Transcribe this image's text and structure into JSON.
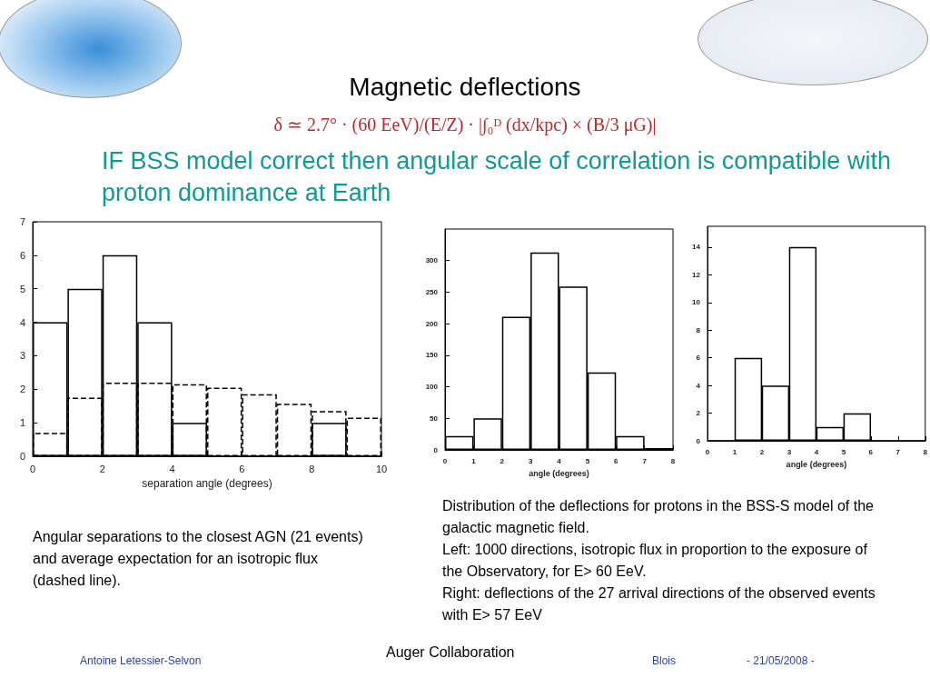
{
  "chart_data": [
    {
      "type": "histogram",
      "xlabel": "separation angle (degrees)",
      "bins": [
        0,
        1,
        2,
        3,
        4,
        5,
        6,
        7,
        8,
        9,
        10
      ],
      "series": [
        {
          "color": "#000000",
          "values": [
            4,
            5,
            6,
            4,
            1,
            0,
            0,
            0,
            1,
            0
          ]
        },
        {
          "color": "#000000",
          "line_style": "dashed",
          "values": [
            0.7,
            1.75,
            2.2,
            2.2,
            2.15,
            2.05,
            1.85,
            1.57,
            1.35,
            1.15
          ]
        }
      ],
      "xlim": [
        0,
        10
      ],
      "xticks": [
        0,
        2,
        4,
        6,
        8,
        10
      ],
      "ylim": [
        0,
        7
      ],
      "yticks": [
        0,
        1,
        2,
        3,
        4,
        5,
        6,
        7
      ],
      "annotations": [
        "Magnetic deflections",
        "δ ≃ 2.7° · (60 EeV)/(E/Z) · |∫₀ᴰ (dx/kpc) × (B/3 μG)|",
        "IF BSS model  correct then angular scale of correlation is compatible with proton dominance at Earth",
        "Angular separations to the closest AGN (21 events) and average expectation for an isotropic flux (dashed line).",
        "Antoine Letessier-Selvon",
        "Auger Collaboration",
        "Blois",
        "- 21/05/2008 -"
      ]
    },
    {
      "type": "histogram",
      "xlabel": "angle (degrees)",
      "bins": [
        0,
        1,
        2,
        3,
        4,
        5,
        6,
        7,
        8
      ],
      "values": [
        22,
        50,
        211,
        313,
        259,
        123,
        22,
        3
      ],
      "color": "#000000",
      "xlim": [
        0,
        8
      ],
      "xticks": [
        0,
        1,
        2,
        3,
        4,
        5,
        6,
        7,
        8
      ],
      "ylim": [
        0,
        350
      ],
      "yticks": [
        0,
        50,
        100,
        150,
        200,
        250,
        300
      ],
      "annotations": [
        "Distribution of the deflections for protons in the BSS-S model of the galactic magnetic field.",
        "Left: 1000 directions, isotropic flux in proportion to the exposure of the Observatory, for E> 60 EeV.",
        "Right: deflections of the 27 arrival directions of the observed events with E> 57 EeV"
      ]
    },
    {
      "type": "histogram",
      "xlabel": "angle (degrees)",
      "bins": [
        0,
        1,
        2,
        3,
        4,
        5,
        6,
        7,
        8
      ],
      "values": [
        0,
        6,
        4,
        14,
        1,
        2,
        0,
        0
      ],
      "color": "#000000",
      "xlim": [
        0,
        8
      ],
      "xticks": [
        0,
        1,
        2,
        3,
        4,
        5,
        6,
        7,
        8
      ],
      "ylim": [
        0,
        15.5
      ],
      "yticks": [
        0,
        2,
        4,
        6,
        8,
        10,
        12,
        14
      ]
    }
  ]
}
